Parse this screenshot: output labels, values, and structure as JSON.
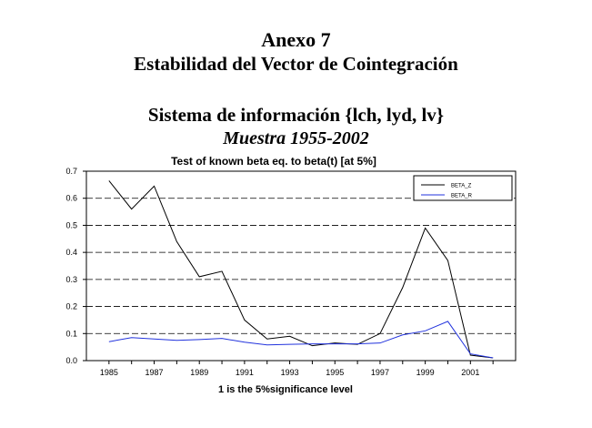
{
  "header": {
    "annex": "Anexo 7",
    "annex_title": "Estabilidad del Vector de Cointegración",
    "system_title": "Sistema de información {lch, lyd, lv}",
    "sample": "Muestra 1955-2002"
  },
  "chart_data": {
    "type": "line",
    "title": "Test of known beta eq. to beta(t) [at 5%]",
    "xlabel": "1 is the 5%significance level",
    "ylabel": "",
    "x": [
      1985,
      1986,
      1987,
      1988,
      1989,
      1990,
      1991,
      1992,
      1993,
      1994,
      1995,
      1996,
      1997,
      1998,
      1999,
      2000,
      2001,
      2002
    ],
    "xlim": [
      1984,
      2003
    ],
    "x_ticks": [
      "1985",
      "1987",
      "1989",
      "1991",
      "1993",
      "1995",
      "1997",
      "1999",
      "2001"
    ],
    "ylim": [
      0,
      0.7
    ],
    "y_ticks": [
      "0.0",
      "0.1",
      "0.2",
      "0.3",
      "0.4",
      "0.5",
      "0.6",
      "0.7"
    ],
    "grid": "horizontal dashed",
    "legend_position": "top-right",
    "series": [
      {
        "name": "BETA_Z",
        "color": "#000000",
        "values": [
          0.665,
          0.56,
          0.645,
          0.44,
          0.31,
          0.33,
          0.15,
          0.08,
          0.09,
          0.055,
          0.065,
          0.06,
          0.1,
          0.27,
          0.49,
          0.37,
          0.02,
          0.01
        ]
      },
      {
        "name": "BETA_R",
        "color": "#2233dd",
        "values": [
          0.07,
          0.085,
          0.08,
          0.075,
          0.078,
          0.082,
          0.068,
          0.058,
          0.06,
          0.062,
          0.062,
          0.062,
          0.065,
          0.095,
          0.11,
          0.145,
          0.025,
          0.01
        ]
      }
    ]
  }
}
